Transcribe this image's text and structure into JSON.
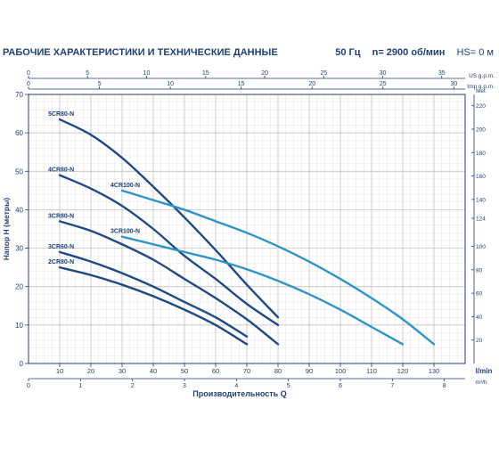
{
  "header": {
    "title": "РАБОЧИЕ ХАРАКТЕРИСТИКИ И ТЕХНИЧЕСКИЕ ДАННЫЕ",
    "frequency": "50 Гц",
    "speed": "n= 2900 об/мин",
    "hs": "HS= 0 м"
  },
  "chart_data": {
    "type": "line",
    "xlabel": "Производительность Q",
    "ylabel": "Напор H (метры)",
    "x_unit": "l/min",
    "xlim": [
      0,
      140
    ],
    "ylim": [
      0,
      70
    ],
    "grid": true,
    "x_ticks": [
      10,
      20,
      30,
      40,
      50,
      60,
      70,
      80,
      90,
      100,
      110,
      120,
      130
    ],
    "y_ticks": [
      0,
      10,
      20,
      30,
      40,
      50,
      60,
      70
    ],
    "y_feet_label": "feet",
    "y_feet_ticks": [
      20,
      40,
      60,
      80,
      100,
      124,
      140,
      160,
      180,
      200,
      220
    ],
    "top_axes": [
      {
        "unit": "US g.p.m.",
        "ticks": [
          0,
          5,
          10,
          15,
          20,
          25,
          30,
          35
        ]
      },
      {
        "unit": "Imp g.p.m.",
        "ticks": [
          0,
          5,
          10,
          15,
          20,
          25,
          30
        ]
      }
    ],
    "bottom_axis_m3": {
      "unit": "m³/h",
      "ticks": [
        0,
        1,
        2,
        3,
        4,
        5,
        6,
        7,
        8
      ]
    },
    "series": [
      {
        "name": "5CR80-N",
        "color": "#1f4a85",
        "x": [
          10,
          20,
          30,
          40,
          50,
          60,
          70,
          80
        ],
        "y": [
          63.5,
          59.5,
          53.5,
          46,
          38,
          29.5,
          20.5,
          12
        ]
      },
      {
        "name": "4CR80-N",
        "color": "#1f4a85",
        "x": [
          10,
          20,
          30,
          40,
          50,
          60,
          70,
          80
        ],
        "y": [
          49,
          45.5,
          41,
          35,
          28,
          22,
          15.5,
          10
        ]
      },
      {
        "name": "4CR100-N",
        "color": "#2f94c8",
        "x": [
          30,
          40,
          50,
          60,
          70,
          80,
          90,
          100,
          110,
          120,
          130
        ],
        "y": [
          45,
          42.5,
          40,
          37,
          34,
          30.5,
          26.5,
          22,
          17,
          11.5,
          5
        ]
      },
      {
        "name": "3CR80-N",
        "color": "#1f4a85",
        "x": [
          10,
          20,
          30,
          40,
          50,
          60,
          70,
          80
        ],
        "y": [
          37,
          34.5,
          31,
          27,
          22,
          17,
          11.5,
          5
        ]
      },
      {
        "name": "3CR100-N",
        "color": "#2f94c8",
        "x": [
          30,
          40,
          50,
          60,
          70,
          80,
          90,
          100,
          110,
          120
        ],
        "y": [
          33,
          31,
          29,
          27,
          24.5,
          21.5,
          18,
          14,
          9.5,
          5
        ]
      },
      {
        "name": "3CR60-N",
        "color": "#1f4a85",
        "x": [
          10,
          20,
          30,
          40,
          50,
          60,
          70
        ],
        "y": [
          29,
          26.5,
          23.5,
          20,
          16,
          12,
          7
        ]
      },
      {
        "name": "2CR80-N",
        "color": "#1f4a85",
        "x": [
          10,
          20,
          30,
          40,
          50,
          60,
          70
        ],
        "y": [
          25,
          23,
          20.5,
          17.5,
          14,
          10,
          5
        ]
      }
    ]
  }
}
